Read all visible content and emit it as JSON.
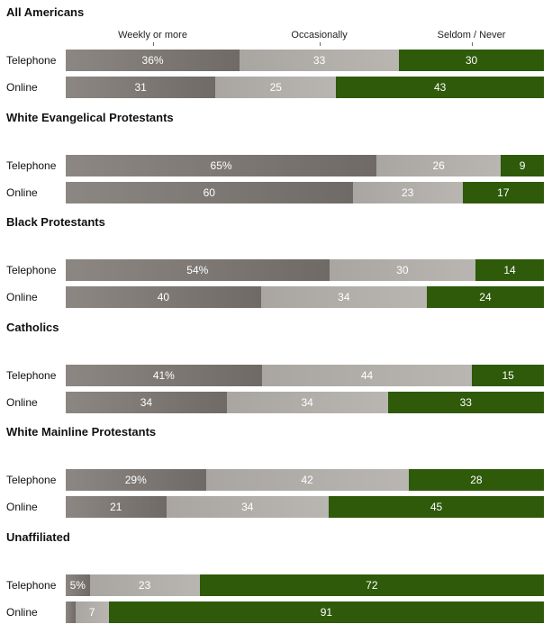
{
  "chart_data": {
    "type": "bar",
    "orientation": "horizontal",
    "stacked": true,
    "unit_suffix": "%",
    "legend": [
      "Weekly or more",
      "Occasionally",
      "Seldom / Never"
    ],
    "colors": {
      "weekly": "#7d7873",
      "occasionally": "#b1aeaa",
      "seldom": "#2e5a0a",
      "label": "#ffffff"
    },
    "groups": [
      {
        "title": "All Americans",
        "rows": [
          {
            "label": "Telephone",
            "values": [
              36,
              33,
              30
            ],
            "display": [
              "36%",
              "33",
              "30"
            ]
          },
          {
            "label": "Online",
            "values": [
              31,
              25,
              43
            ],
            "display": [
              "31",
              "25",
              "43"
            ]
          }
        ]
      },
      {
        "title": "White Evangelical Protestants",
        "rows": [
          {
            "label": "Telephone",
            "values": [
              65,
              26,
              9
            ],
            "display": [
              "65%",
              "26",
              "9"
            ]
          },
          {
            "label": "Online",
            "values": [
              60,
              23,
              17
            ],
            "display": [
              "60",
              "23",
              "17"
            ]
          }
        ]
      },
      {
        "title": "Black Protestants",
        "rows": [
          {
            "label": "Telephone",
            "values": [
              54,
              30,
              14
            ],
            "display": [
              "54%",
              "30",
              "14"
            ]
          },
          {
            "label": "Online",
            "values": [
              40,
              34,
              24
            ],
            "display": [
              "40",
              "34",
              "24"
            ]
          }
        ]
      },
      {
        "title": "Catholics",
        "rows": [
          {
            "label": "Telephone",
            "values": [
              41,
              44,
              15
            ],
            "display": [
              "41%",
              "44",
              "15"
            ]
          },
          {
            "label": "Online",
            "values": [
              34,
              34,
              33
            ],
            "display": [
              "34",
              "34",
              "33"
            ]
          }
        ]
      },
      {
        "title": "White Mainline Protestants",
        "rows": [
          {
            "label": "Telephone",
            "values": [
              29,
              42,
              28
            ],
            "display": [
              "29%",
              "42",
              "28"
            ]
          },
          {
            "label": "Online",
            "values": [
              21,
              34,
              45
            ],
            "display": [
              "21",
              "34",
              "45"
            ]
          }
        ]
      },
      {
        "title": "Unaffiliated",
        "rows": [
          {
            "label": "Telephone",
            "values": [
              5,
              23,
              72
            ],
            "display": [
              "5%",
              "23",
              "72"
            ]
          },
          {
            "label": "Online",
            "values": [
              2,
              7,
              91
            ],
            "display": [
              "",
              "7",
              "91"
            ]
          }
        ]
      }
    ]
  }
}
